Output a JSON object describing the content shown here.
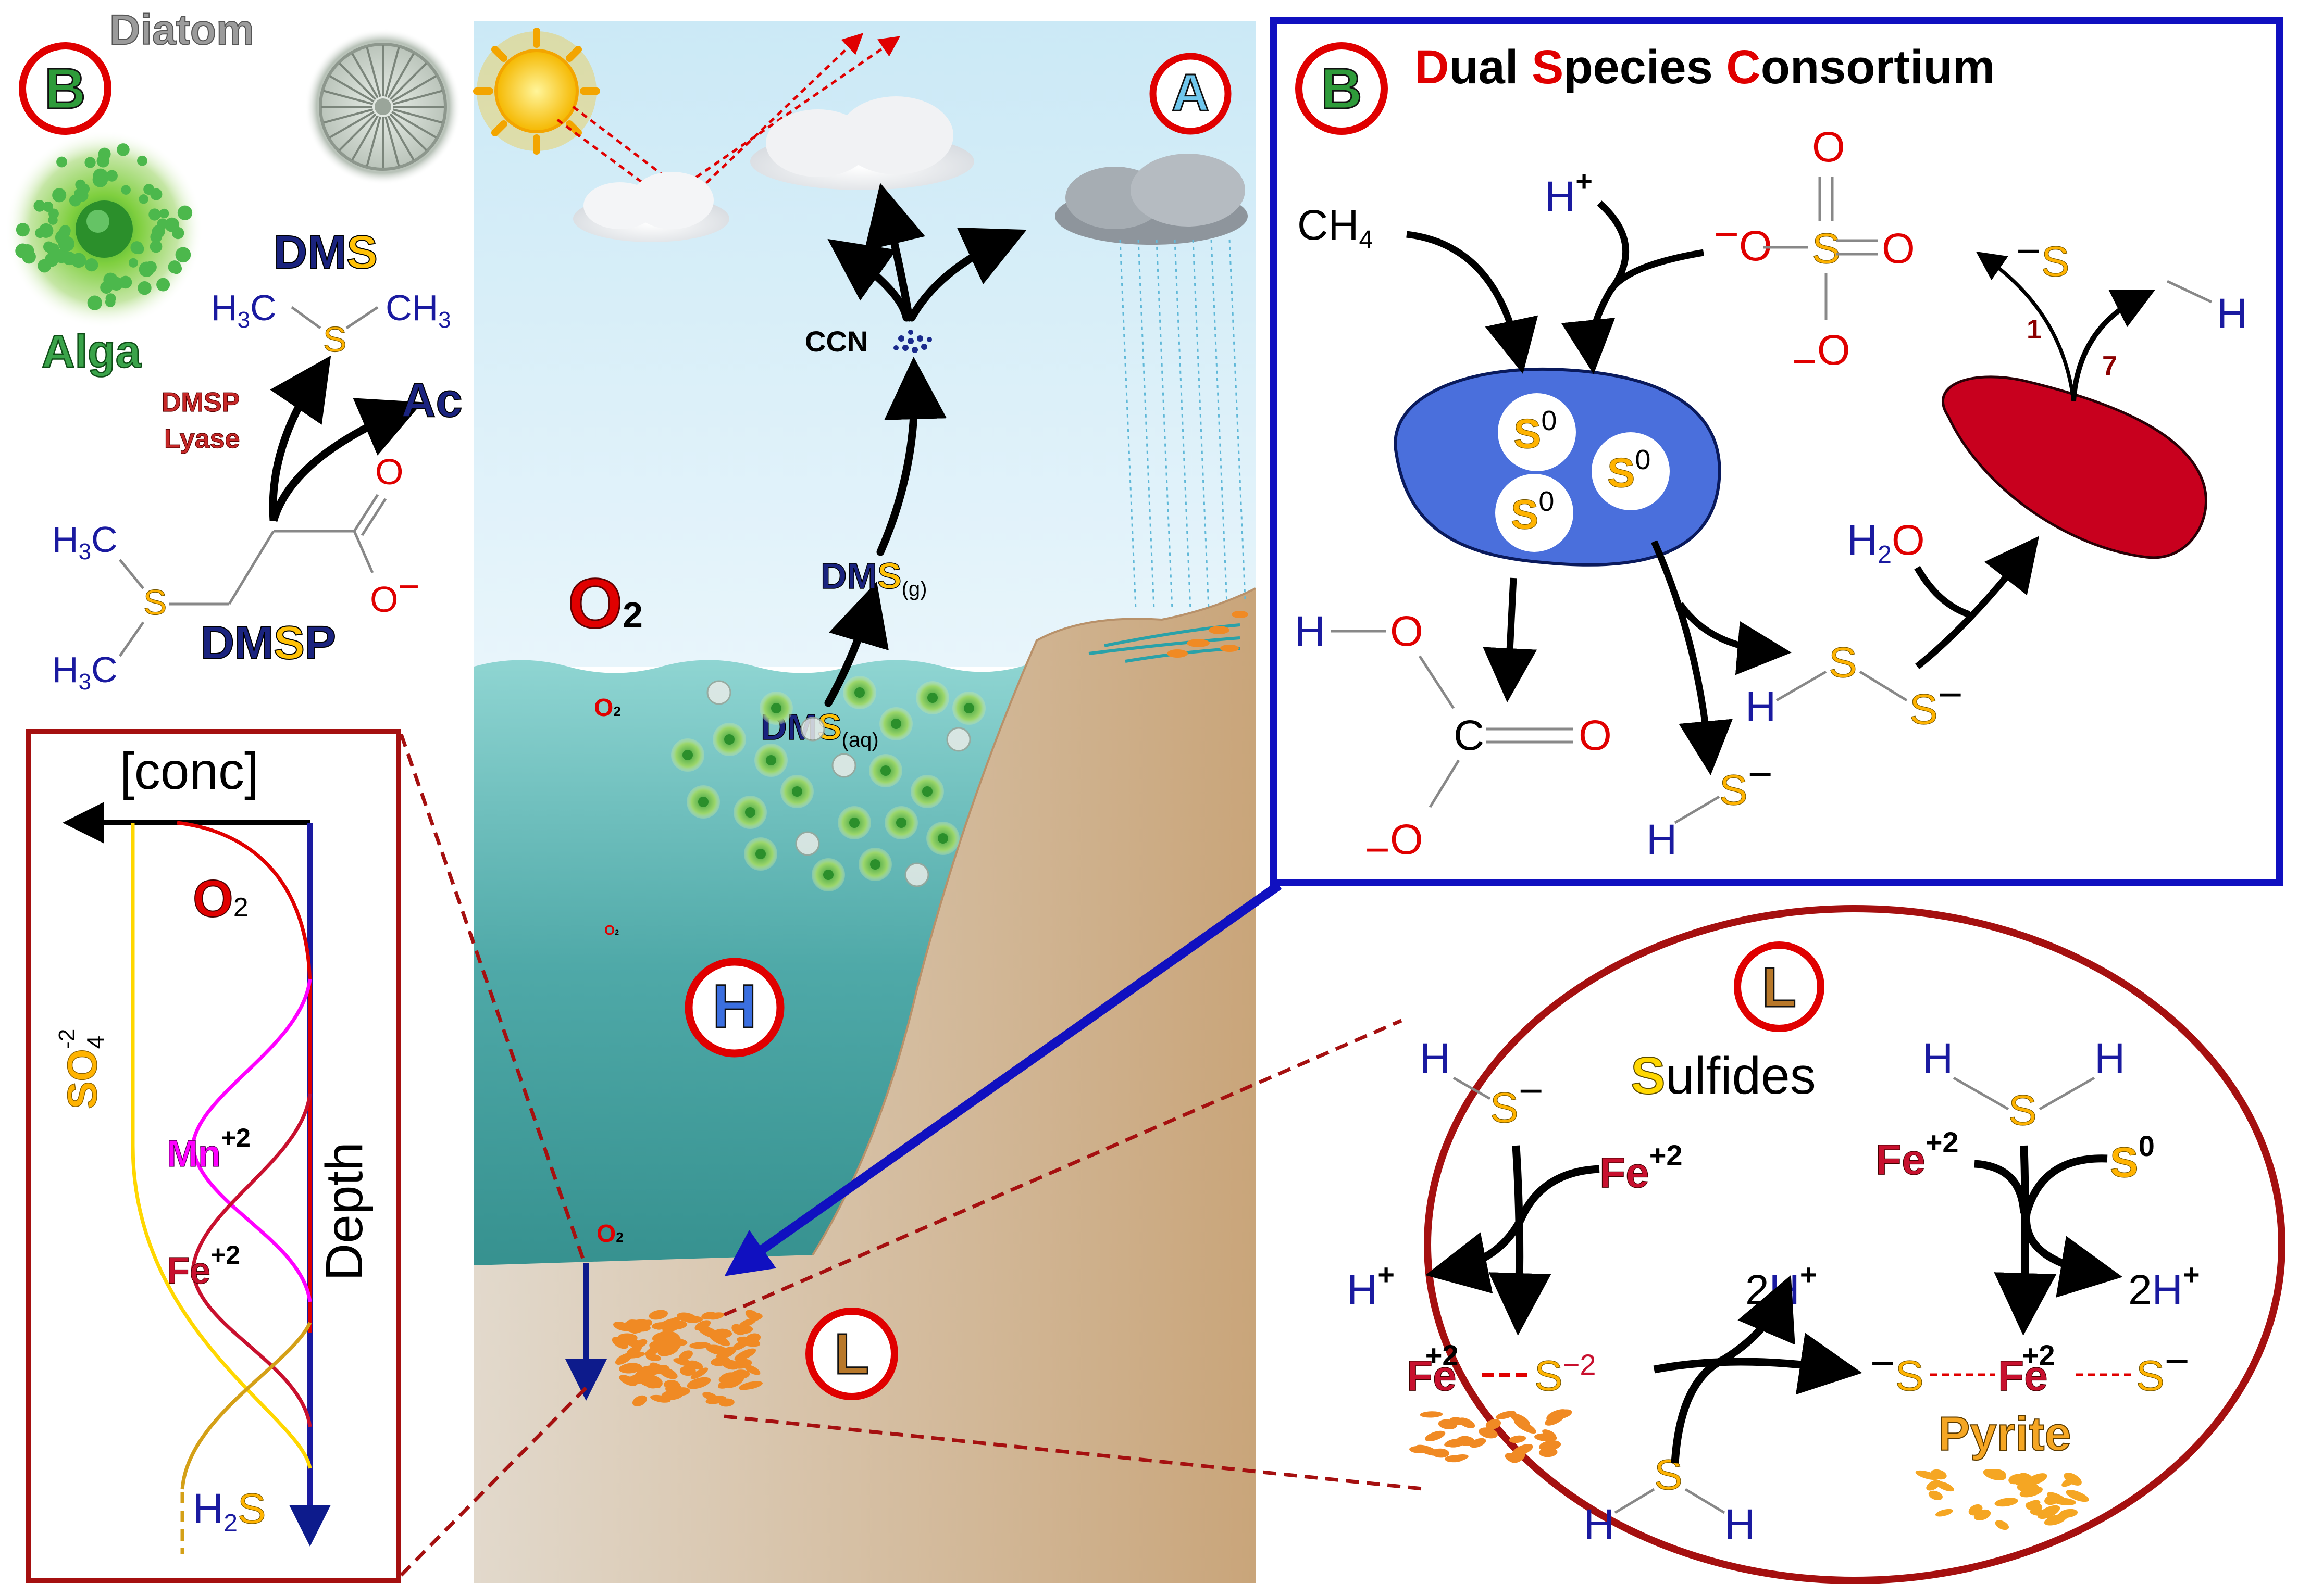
{
  "badges": {
    "A": "A",
    "B": "B",
    "H": "H",
    "L": "L"
  },
  "biota": {
    "diatom_label": "Diatom",
    "alga_label": "Alga"
  },
  "dmsp_panel": {
    "dms_pre": "DM",
    "dms_s": "S",
    "h3c": "H",
    "three": "3",
    "c": "C",
    "ch": "CH",
    "s_atom": "S",
    "lyase_line1": "DMSP",
    "lyase_line2": "Lyase",
    "ac": "Ac",
    "o_atom": "O",
    "o_minus": "O",
    "minus": "−",
    "dmsp_pre": "DM",
    "dmsp_s": "S",
    "dmsp_p": "P"
  },
  "ocean": {
    "o2_big": "O",
    "sub2": "2",
    "dms_g_pre": "DM",
    "dms_g_s": "S",
    "dms_g_sub": "(g)",
    "dms_aq_pre": "DM",
    "dms_aq_s": "S",
    "dms_aq_sub": "(aq)",
    "ccn": "CCN",
    "o2": "O",
    "o2sub": "2"
  },
  "profile": {
    "conc": "[conc]",
    "o2": "O",
    "o2sub": "2",
    "so4": "SO",
    "so4sub": "4",
    "so4sup": "-2",
    "mn": "Mn",
    "mnsup": "+2",
    "fe": "Fe",
    "fesup": "+2",
    "depth": "Depth",
    "h2s_h": "H",
    "h2s_2": "2",
    "h2s_s": "S",
    "colors": {
      "o2": "#e00000",
      "so4": "#ffd700",
      "mn": "#ff00ff",
      "fe": "#c8102e",
      "h2s": "#d4a017",
      "axis": "#1a1aa0"
    }
  },
  "consortium": {
    "title": [
      [
        "D",
        "ual "
      ],
      [
        "S",
        "pecies "
      ],
      [
        "C",
        "onsortium"
      ]
    ],
    "ch4_ch": "CH",
    "ch4_4": "4",
    "h_plus_h": "H",
    "h_plus": "+",
    "o": "O",
    "s": "S",
    "minus": "−",
    "h": "H",
    "s0_s": "S",
    "s0_0": "0",
    "h2o_h": "H",
    "h2o_2": "2",
    "h2o_o": "O",
    "c": "C",
    "ratio_1": "1",
    "ratio_7": "7",
    "colors": {
      "archaea": "#4a6fdc",
      "bacteria": "#c8001e",
      "frame": "#1010c0"
    }
  },
  "sulfides": {
    "title_s": "S",
    "title_rest": "ulfides",
    "h": "H",
    "s": "S",
    "minus": "−",
    "fe": "Fe",
    "plus2": "+2",
    "minus2": "−2",
    "s0_0": "0",
    "plus": "+",
    "two": "2",
    "pyrite": "Pyrite"
  }
}
